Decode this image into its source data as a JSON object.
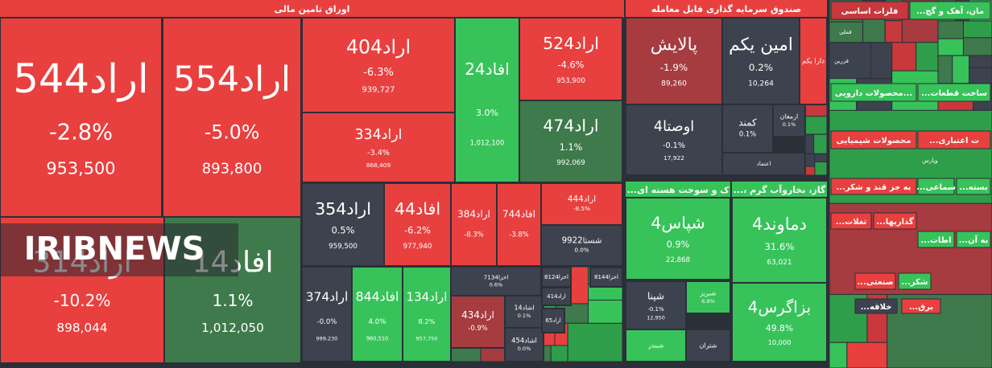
{
  "watermark": "IRIBNEWS",
  "sectors": [
    {
      "title": "اوراق تامین مالی",
      "tiles": [
        {
          "name": "اراد544",
          "change": "-2.8%",
          "volume": "953,500"
        },
        {
          "name": "اراد554",
          "change": "-5.0%",
          "volume": "893,800"
        },
        {
          "name": "اراد314",
          "change": "-10.2%",
          "volume": "898,044"
        },
        {
          "name": "افاد14",
          "change": "1.1%",
          "volume": "1,012,050"
        },
        {
          "name": "اراد404",
          "change": "-6.3%",
          "volume": "939,727"
        },
        {
          "name": "اراد334",
          "change": "-3.4%",
          "volume": "868,409"
        },
        {
          "name": "افاد24",
          "change": "3.0%",
          "volume": "1,012,100"
        },
        {
          "name": "اراد524",
          "change": "-4.6%",
          "volume": "953,900"
        },
        {
          "name": "اراد474",
          "change": "1.1%",
          "volume": "992,069"
        },
        {
          "name": "اراد354",
          "change": "0.5%",
          "volume": "959,500"
        },
        {
          "name": "افاد44",
          "change": "-6.2%",
          "volume": "977,940"
        },
        {
          "name": "اراد384",
          "change": "-8.3%"
        },
        {
          "name": "افاد744",
          "change": "-3.8%"
        },
        {
          "name": "اراد444",
          "change": "-8.5%"
        },
        {
          "name": "شستا9922",
          "change": "0.0%"
        },
        {
          "name": "اراد374",
          "change": "-0.0%",
          "volume": "999,230"
        },
        {
          "name": "افاد844",
          "change": "4.0%",
          "volume": "960,510"
        },
        {
          "name": "اراد134",
          "change": "8.2%",
          "volume": "957,750"
        },
        {
          "name": "اخزا7134",
          "change": "0.6%"
        },
        {
          "name": "اراد434",
          "change": "-0.9%"
        },
        {
          "name": "اشاد14",
          "change": "0.1%"
        },
        {
          "name": "اشاد454",
          "change": "0.0%"
        },
        {
          "name": "اخزا8124"
        },
        {
          "name": "اخزا8144"
        },
        {
          "name": "اراد414"
        },
        {
          "name": "اراد65"
        }
      ]
    },
    {
      "title": "صندوق سرمایه گذاری قابل معامله",
      "tiles": [
        {
          "name": "پالایش",
          "change": "-1.9%",
          "volume": "89,260"
        },
        {
          "name": "امین یکم",
          "change": "0.2%",
          "volume": "10,264"
        },
        {
          "name": "دارا یکم"
        },
        {
          "name": "اوصتا4",
          "change": "-0.1%",
          "volume": "17,922"
        },
        {
          "name": "کمند",
          "change": "0.1%"
        },
        {
          "name": "ارمغان",
          "change": "0.1%"
        },
        {
          "name": "اعتماد"
        }
      ]
    },
    {
      "title": "...ک و سوخت هسته ای",
      "tiles": [
        {
          "name": "شپاس4",
          "change": "0.9%",
          "volume": "22,868"
        },
        {
          "name": "شپنا",
          "change": "-0.1%",
          "volume": "12,950"
        },
        {
          "name": "شبریز",
          "change": "6.9%"
        },
        {
          "name": "شبندر"
        },
        {
          "name": "شتران"
        }
      ]
    },
    {
      "title": "...، گاز، بخاروآب گرم",
      "tiles": [
        {
          "name": "دماوند4",
          "change": "31.6%",
          "volume": "63,021"
        },
        {
          "name": "بزاگرس4",
          "change": "49.8%",
          "volume": "10,000"
        }
      ]
    }
  ],
  "mini_sectors": [
    {
      "title": "فلزات اساسی",
      "items": [
        "فملی",
        "فزرین"
      ]
    },
    {
      "title": "...مان، آهک و گچ",
      "items": []
    },
    {
      "title": "محصولات دارویی...",
      "items": []
    },
    {
      "title": "...ساخت قطعات",
      "items": []
    },
    {
      "title": "محصولات شیمیایی",
      "items": []
    },
    {
      "title": "...ت اعتباری",
      "items": [
        "وپارس"
      ]
    },
    {
      "title": "...به جز قند و شکر",
      "items": []
    },
    {
      "title": "...سماعی",
      "items": []
    },
    {
      "title": "...بسته",
      "items": []
    },
    {
      "title": "...تغلات",
      "items": []
    },
    {
      "title": "...گذاریها",
      "items": []
    },
    {
      "title": "...اطات",
      "items": []
    },
    {
      "title": "...به آن",
      "items": []
    },
    {
      "title": "...صنعتی",
      "items": []
    },
    {
      "title": "...شکر",
      "items": []
    },
    {
      "title": "...خلاقه",
      "items": []
    },
    {
      "title": "...برق",
      "items": []
    }
  ]
}
